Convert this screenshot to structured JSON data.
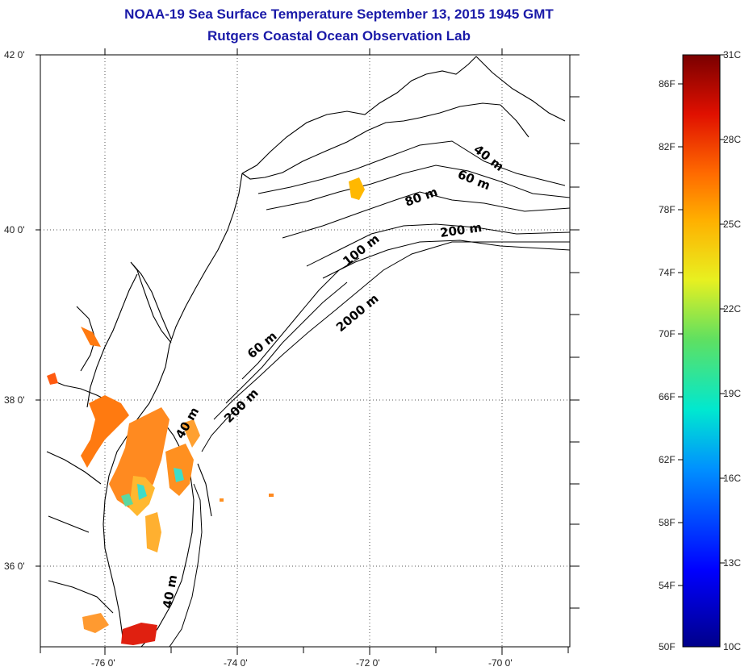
{
  "title": {
    "line1": "NOAA-19 Sea Surface Temperature September 13, 2015 1945 GMT",
    "line2": "Rutgers Coastal Ocean Observation Lab"
  },
  "map": {
    "lat_labels": [
      "42 0'",
      "40 0'",
      "38 0'",
      "36 0'"
    ],
    "lon_labels": [
      "-76 0'",
      "-74 0'",
      "-72 0'",
      "-70 0'"
    ],
    "isobath_labels": [
      "40 m",
      "60 m",
      "80 m",
      "200 m",
      "100 m",
      "2000 m",
      "60 m",
      "40 m",
      "200 m",
      "40 m"
    ]
  },
  "colorbar": {
    "fahrenheit_labels": [
      "86F",
      "82F",
      "78F",
      "74F",
      "70F",
      "66F",
      "62F",
      "58F",
      "54F",
      "50F"
    ],
    "celsius_labels": [
      "31C",
      "28C",
      "25C",
      "22C",
      "19C",
      "16C",
      "13C",
      "10C"
    ]
  },
  "colors": {
    "title": "#1a1aa8",
    "warm": "#ff7a10",
    "cool": "#3fdcc8"
  }
}
